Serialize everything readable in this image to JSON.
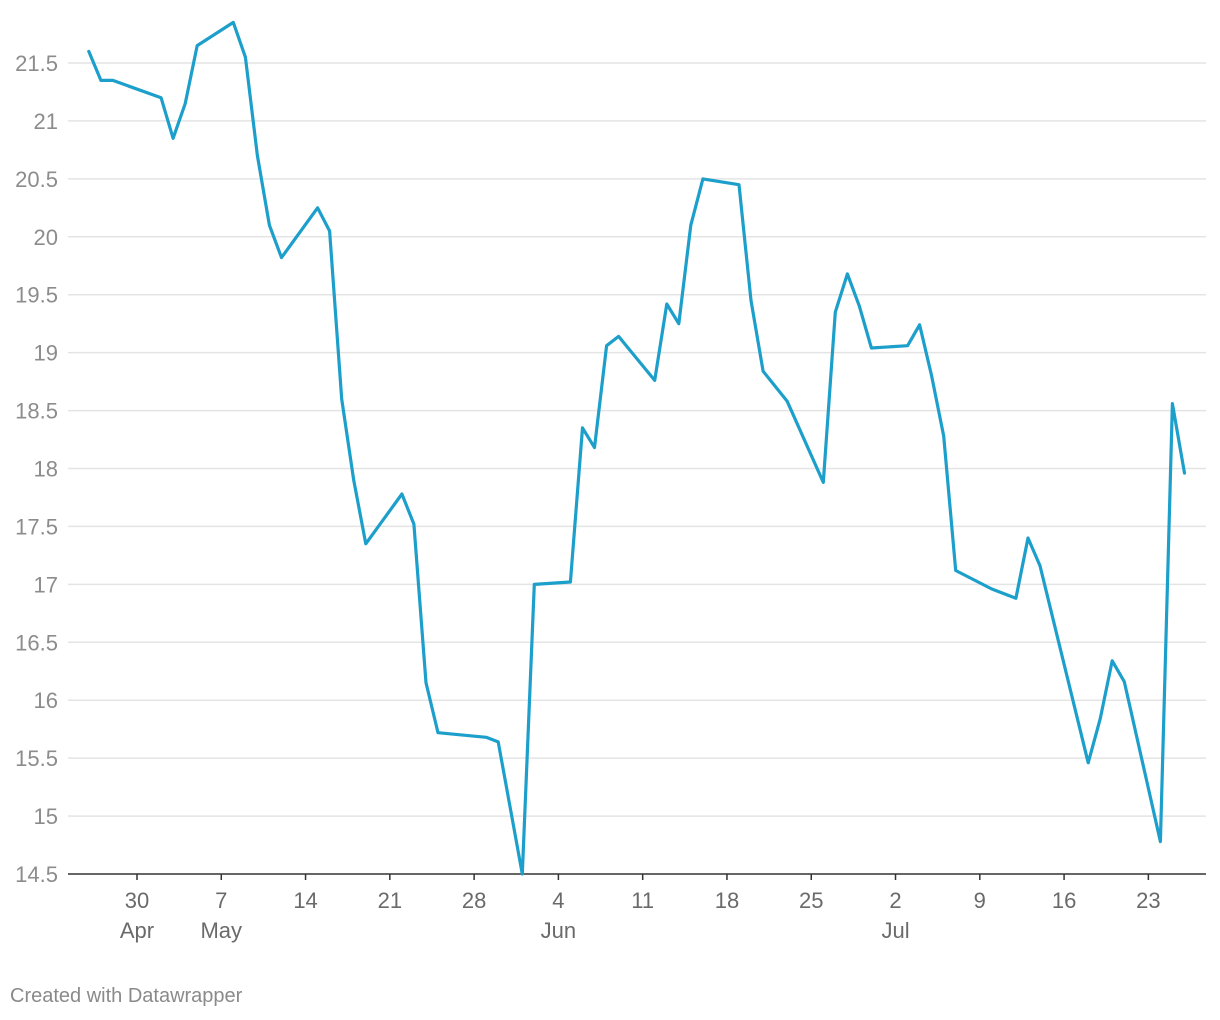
{
  "footer": {
    "credit": "Created with Datawrapper"
  },
  "chart_data": {
    "type": "line",
    "color": "#1d9fcb",
    "ylim": [
      14.5,
      21.5
    ],
    "yticks": [
      14.5,
      15,
      15.5,
      16,
      16.5,
      17,
      17.5,
      18,
      18.5,
      19,
      19.5,
      20,
      20.5,
      21,
      21.5
    ],
    "ytick_labels": [
      "14.5",
      "15",
      "15.5",
      "16",
      "16.5",
      "17",
      "17.5",
      "18",
      "18.5",
      "19",
      "19.5",
      "20",
      "20.5",
      "21",
      "21.5"
    ],
    "grid": "horizontal",
    "xticks": [
      {
        "date": "2018-04-30",
        "label": "30",
        "month": "Apr"
      },
      {
        "date": "2018-05-07",
        "label": "7",
        "month": "May"
      },
      {
        "date": "2018-05-14",
        "label": "14",
        "month": ""
      },
      {
        "date": "2018-05-21",
        "label": "21",
        "month": ""
      },
      {
        "date": "2018-05-28",
        "label": "28",
        "month": ""
      },
      {
        "date": "2018-06-04",
        "label": "4",
        "month": "Jun"
      },
      {
        "date": "2018-06-11",
        "label": "11",
        "month": ""
      },
      {
        "date": "2018-06-18",
        "label": "18",
        "month": ""
      },
      {
        "date": "2018-06-25",
        "label": "25",
        "month": ""
      },
      {
        "date": "2018-07-02",
        "label": "2",
        "month": "Jul"
      },
      {
        "date": "2018-07-09",
        "label": "9",
        "month": ""
      },
      {
        "date": "2018-07-16",
        "label": "16",
        "month": ""
      },
      {
        "date": "2018-07-23",
        "label": "23",
        "month": ""
      }
    ],
    "series": [
      {
        "points": [
          [
            "2018-04-26",
            21.6
          ],
          [
            "2018-04-27",
            21.35
          ],
          [
            "2018-04-28",
            21.35
          ],
          [
            "2018-05-02",
            21.2
          ],
          [
            "2018-05-03",
            20.85
          ],
          [
            "2018-05-04",
            21.15
          ],
          [
            "2018-05-05",
            21.65
          ],
          [
            "2018-05-08",
            21.85
          ],
          [
            "2018-05-09",
            21.55
          ],
          [
            "2018-05-10",
            20.7
          ],
          [
            "2018-05-11",
            20.1
          ],
          [
            "2018-05-12",
            19.82
          ],
          [
            "2018-05-15",
            20.25
          ],
          [
            "2018-05-16",
            20.05
          ],
          [
            "2018-05-17",
            18.6
          ],
          [
            "2018-05-18",
            17.9
          ],
          [
            "2018-05-19",
            17.35
          ],
          [
            "2018-05-22",
            17.78
          ],
          [
            "2018-05-23",
            17.52
          ],
          [
            "2018-05-24",
            16.15
          ],
          [
            "2018-05-25",
            15.72
          ],
          [
            "2018-05-29",
            15.68
          ],
          [
            "2018-05-30",
            15.64
          ],
          [
            "2018-06-01",
            14.5
          ],
          [
            "2018-06-02",
            17.0
          ],
          [
            "2018-06-05",
            17.02
          ],
          [
            "2018-06-06",
            18.35
          ],
          [
            "2018-06-07",
            18.18
          ],
          [
            "2018-06-08",
            19.06
          ],
          [
            "2018-06-09",
            19.14
          ],
          [
            "2018-06-12",
            18.76
          ],
          [
            "2018-06-13",
            19.42
          ],
          [
            "2018-06-14",
            19.25
          ],
          [
            "2018-06-15",
            20.1
          ],
          [
            "2018-06-16",
            20.5
          ],
          [
            "2018-06-19",
            20.45
          ],
          [
            "2018-06-20",
            19.45
          ],
          [
            "2018-06-21",
            18.84
          ],
          [
            "2018-06-23",
            18.58
          ],
          [
            "2018-06-26",
            17.88
          ],
          [
            "2018-06-27",
            19.35
          ],
          [
            "2018-06-28",
            19.68
          ],
          [
            "2018-06-29",
            19.4
          ],
          [
            "2018-06-30",
            19.04
          ],
          [
            "2018-07-03",
            19.06
          ],
          [
            "2018-07-04",
            19.24
          ],
          [
            "2018-07-05",
            18.8
          ],
          [
            "2018-07-06",
            18.28
          ],
          [
            "2018-07-07",
            17.12
          ],
          [
            "2018-07-10",
            16.96
          ],
          [
            "2018-07-12",
            16.88
          ],
          [
            "2018-07-13",
            17.4
          ],
          [
            "2018-07-14",
            17.16
          ],
          [
            "2018-07-18",
            15.46
          ],
          [
            "2018-07-19",
            15.84
          ],
          [
            "2018-07-20",
            16.34
          ],
          [
            "2018-07-21",
            16.16
          ],
          [
            "2018-07-24",
            14.78
          ],
          [
            "2018-07-25",
            18.56
          ],
          [
            "2018-07-26",
            17.96
          ]
        ]
      }
    ]
  }
}
